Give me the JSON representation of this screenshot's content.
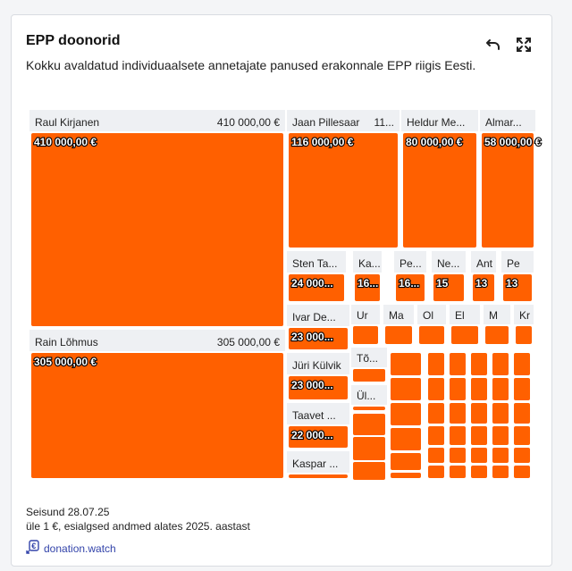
{
  "header": {
    "title": "EPP doonorid",
    "subtitle": "Kokku avaldatud individuaalsete annetajate panused erakonnale EPP riigis Eesti."
  },
  "toolbar": {
    "undo_icon": "undo-icon",
    "expand_icon": "fullscreen-icon"
  },
  "footer": {
    "status": "Seisund 28.07.25",
    "note": "üle 1 €, esialgsed andmed alates 2025. aastast",
    "source_label": "donation.watch",
    "source_icon": "donation-watch-logo-icon"
  },
  "colors": {
    "block": "#ff6000",
    "header_bg": "#eef0f3",
    "accent_link": "#3344aa"
  },
  "chart_data": {
    "type": "treemap",
    "currency": "€",
    "items": [
      {
        "name": "Raul Kirjanen",
        "header_value": "410 000,00 €",
        "block_label": "410 000,00 €",
        "value": 410000
      },
      {
        "name": "Rain Lõhmus",
        "header_value": "305 000,00 €",
        "block_label": "305 000,00 €",
        "value": 305000
      },
      {
        "name": "Jaan Pillesaar",
        "header_value": "11...",
        "block_label": "116 000,00 €",
        "value": 116000
      },
      {
        "name": "Heldur Me...",
        "header_value": "",
        "block_label": "80 000,00 €",
        "value": 80000
      },
      {
        "name": "Almar...",
        "header_value": "",
        "block_label": "58 000,00 €",
        "value": 58000
      },
      {
        "name": "Sten Ta...",
        "header_value": "",
        "block_label": "24 000...",
        "value": 24000
      },
      {
        "name": "Ka...",
        "header_value": "",
        "block_label": "16...",
        "value": 16000
      },
      {
        "name": "Pe...",
        "header_value": "",
        "block_label": "16...",
        "value": 16000
      },
      {
        "name": "Ne...",
        "header_value": "",
        "block_label": "15",
        "value": 15000
      },
      {
        "name": "Ant",
        "header_value": "",
        "block_label": "13",
        "value": 13000
      },
      {
        "name": "Pe",
        "header_value": "",
        "block_label": "13",
        "value": 13000
      },
      {
        "name": "Ivar De...",
        "header_value": "",
        "block_label": "23 000...",
        "value": 23000
      },
      {
        "name": "Jüri Külvik",
        "header_value": "",
        "block_label": "23 000...",
        "value": 23000
      },
      {
        "name": "Taavet ...",
        "header_value": "",
        "block_label": "22 000...",
        "value": 22000
      },
      {
        "name": "Kaspar ...",
        "header_value": "",
        "block_label": "",
        "value": null
      },
      {
        "name": "Ur",
        "header_value": "",
        "block_label": "",
        "value": null
      },
      {
        "name": "Ma",
        "header_value": "",
        "block_label": "",
        "value": null
      },
      {
        "name": "Ol",
        "header_value": "",
        "block_label": "",
        "value": null
      },
      {
        "name": "El",
        "header_value": "",
        "block_label": "",
        "value": null
      },
      {
        "name": "M",
        "header_value": "",
        "block_label": "",
        "value": null
      },
      {
        "name": "Kr",
        "header_value": "",
        "block_label": "",
        "value": null
      },
      {
        "name": "Tõ...",
        "header_value": "",
        "block_label": "",
        "value": null
      },
      {
        "name": "Ül...",
        "header_value": "",
        "block_label": "",
        "value": null
      }
    ],
    "small_tiles_unlabeled": true
  }
}
